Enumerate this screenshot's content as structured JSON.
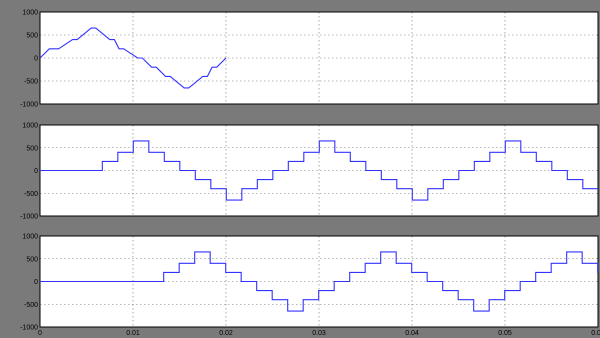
{
  "chart_data": [
    {
      "type": "line",
      "title": "",
      "xlabel": "",
      "ylabel": "",
      "xlim": [
        0,
        0.06
      ],
      "ylim": [
        -1000,
        1000
      ],
      "y_ticks": [
        {
          "value": 1000,
          "label": "1000"
        },
        {
          "value": 500,
          "label": "500"
        },
        {
          "value": 0,
          "label": "0"
        },
        {
          "value": -500,
          "label": "-500"
        },
        {
          "value": -1000,
          "label": "-1000"
        }
      ],
      "x_ticks": [],
      "grid": true,
      "colors": {
        "trace": "#3333ff",
        "background": "#7a7a7a"
      },
      "series": [
        {
          "start": 0,
          "period": 0.02,
          "levels": [
            200,
            400,
            650,
            400,
            200,
            0
          ],
          "x": [
            0,
            0.001,
            0.002,
            0.0035,
            0.004,
            0.0055,
            0.006,
            0.0075,
            0.008,
            0.0085,
            0.009,
            0.0105,
            0.011,
            0.012,
            0.0125,
            0.0135,
            0.014,
            0.0155,
            0.016,
            0.0175,
            0.018,
            0.0185,
            0.019,
            0.02
          ],
          "y": [
            0,
            200,
            200,
            400,
            400,
            650,
            650,
            400,
            400,
            200,
            200,
            0,
            0,
            -200,
            -200,
            -400,
            -400,
            -650,
            -650,
            -400,
            -400,
            -200,
            -200,
            0
          ]
        }
      ]
    },
    {
      "type": "line",
      "title": "",
      "xlabel": "",
      "ylabel": "",
      "xlim": [
        0,
        0.06
      ],
      "ylim": [
        -1000,
        1000
      ],
      "y_ticks": [
        {
          "value": 1000,
          "label": "1000"
        },
        {
          "value": 500,
          "label": "500"
        },
        {
          "value": 0,
          "label": "0"
        },
        {
          "value": -500,
          "label": "-500"
        },
        {
          "value": -1000,
          "label": "-1000"
        }
      ],
      "x_ticks": [],
      "grid": true,
      "colors": {
        "trace": "#3333ff",
        "background": "#7a7a7a"
      },
      "series": [
        {
          "start": 0.0067,
          "period": 0.02,
          "levels": [
            200,
            400,
            650,
            400,
            200,
            0
          ]
        }
      ]
    },
    {
      "type": "line",
      "title": "",
      "xlabel": "",
      "ylabel": "",
      "xlim": [
        0,
        0.06
      ],
      "ylim": [
        -1000,
        1000
      ],
      "y_ticks": [
        {
          "value": 1000,
          "label": "1000"
        },
        {
          "value": 500,
          "label": "500"
        },
        {
          "value": 0,
          "label": "0"
        },
        {
          "value": -500,
          "label": "-500"
        },
        {
          "value": -1000,
          "label": "-1000"
        }
      ],
      "x_ticks": [
        {
          "value": 0,
          "label": "0"
        },
        {
          "value": 0.01,
          "label": "0.01"
        },
        {
          "value": 0.02,
          "label": "0.02"
        },
        {
          "value": 0.03,
          "label": "0.03"
        },
        {
          "value": 0.04,
          "label": "0.04"
        },
        {
          "value": 0.05,
          "label": "0.05"
        },
        {
          "value": 0.06,
          "label": "0.06"
        }
      ],
      "grid": true,
      "colors": {
        "trace": "#3333ff",
        "background": "#7a7a7a"
      },
      "series": [
        {
          "start": 0.0133,
          "period": 0.02,
          "levels": [
            200,
            400,
            650,
            400,
            200,
            0
          ]
        }
      ]
    }
  ]
}
